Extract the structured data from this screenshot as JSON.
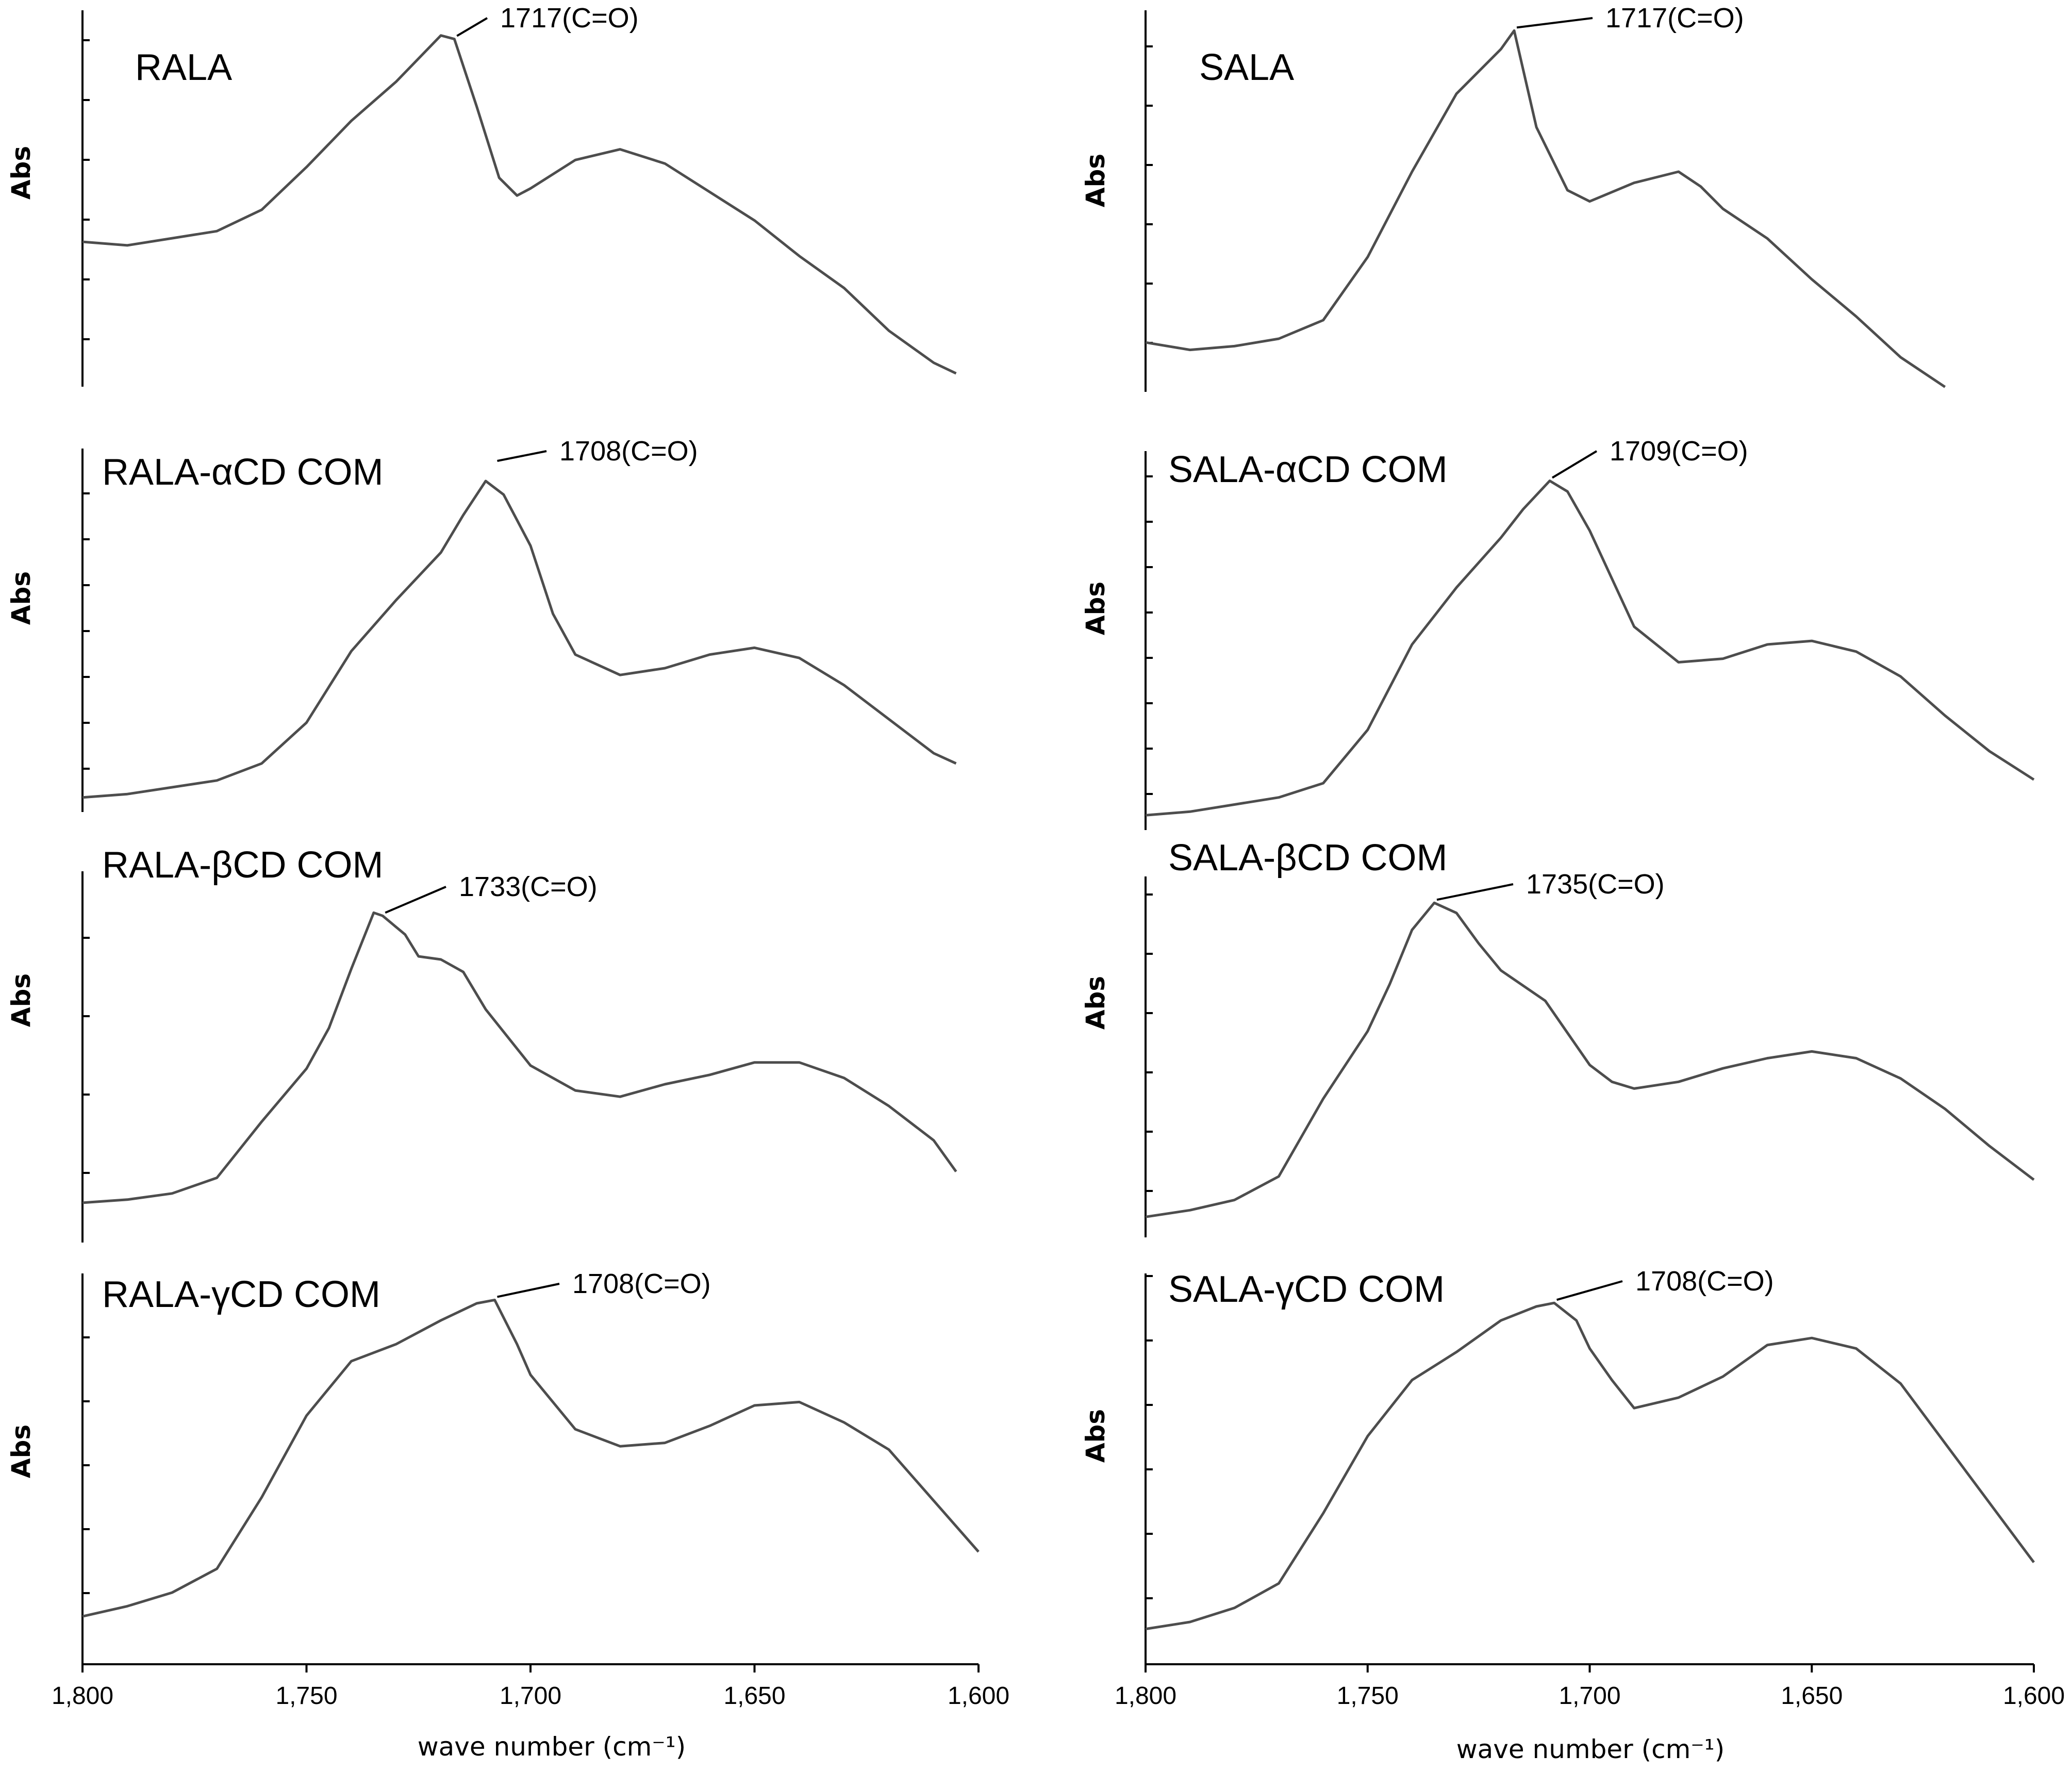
{
  "chart_data": [
    {
      "type": "line",
      "title": "RALA",
      "ylabel": "Abs",
      "annotation": "1717(C=O)",
      "peak_x": 1717,
      "xlim": [
        1800,
        1600
      ],
      "ylim": [
        0,
        1
      ],
      "y_ticks": 6,
      "x": [
        1800,
        1790,
        1780,
        1770,
        1760,
        1750,
        1740,
        1730,
        1720,
        1717,
        1712,
        1707,
        1703,
        1700,
        1690,
        1680,
        1670,
        1660,
        1650,
        1640,
        1630,
        1620,
        1610,
        1605
      ],
      "y": [
        0.4,
        0.39,
        0.41,
        0.43,
        0.49,
        0.61,
        0.74,
        0.85,
        0.98,
        0.97,
        0.78,
        0.58,
        0.53,
        0.55,
        0.63,
        0.66,
        0.62,
        0.54,
        0.46,
        0.36,
        0.27,
        0.15,
        0.06,
        0.03
      ]
    },
    {
      "type": "line",
      "title": "RALA-αCD COM",
      "ylabel": "Abs",
      "annotation": "1708(C=O)",
      "peak_x": 1708,
      "xlim": [
        1800,
        1600
      ],
      "ylim": [
        0,
        1
      ],
      "y_ticks": 8,
      "x": [
        1800,
        1790,
        1780,
        1770,
        1760,
        1750,
        1740,
        1730,
        1720,
        1715,
        1710,
        1706,
        1700,
        1695,
        1690,
        1680,
        1670,
        1660,
        1650,
        1640,
        1630,
        1620,
        1610,
        1605
      ],
      "y": [
        0.02,
        0.03,
        0.05,
        0.07,
        0.12,
        0.24,
        0.45,
        0.6,
        0.74,
        0.85,
        0.95,
        0.91,
        0.76,
        0.56,
        0.44,
        0.38,
        0.4,
        0.44,
        0.46,
        0.43,
        0.35,
        0.25,
        0.15,
        0.12
      ]
    },
    {
      "type": "line",
      "title": "RALA-βCD COM",
      "ylabel": "Abs",
      "annotation": "1733(C=O)",
      "peak_x": 1733,
      "xlim": [
        1800,
        1600
      ],
      "ylim": [
        0,
        1
      ],
      "y_ticks": 4,
      "x": [
        1800,
        1790,
        1780,
        1770,
        1760,
        1750,
        1745,
        1740,
        1735,
        1733,
        1728,
        1725,
        1720,
        1715,
        1710,
        1700,
        1690,
        1680,
        1670,
        1660,
        1650,
        1640,
        1630,
        1620,
        1610,
        1605
      ],
      "y": [
        0.02,
        0.03,
        0.05,
        0.1,
        0.28,
        0.45,
        0.58,
        0.77,
        0.95,
        0.94,
        0.88,
        0.81,
        0.8,
        0.76,
        0.64,
        0.46,
        0.38,
        0.36,
        0.4,
        0.43,
        0.47,
        0.47,
        0.42,
        0.33,
        0.22,
        0.12
      ]
    },
    {
      "type": "line",
      "title": "RALA-γCD COM",
      "ylabel": "Abs",
      "annotation": "1708(C=O)",
      "peak_x": 1708,
      "xlim": [
        1800,
        1600
      ],
      "ylim": [
        0,
        1
      ],
      "y_ticks": 5,
      "x": [
        1800,
        1790,
        1780,
        1770,
        1760,
        1750,
        1740,
        1730,
        1720,
        1712,
        1708,
        1703,
        1700,
        1690,
        1680,
        1670,
        1660,
        1650,
        1640,
        1630,
        1620,
        1610,
        1600
      ],
      "y": [
        0.03,
        0.06,
        0.1,
        0.17,
        0.38,
        0.62,
        0.78,
        0.83,
        0.9,
        0.95,
        0.96,
        0.83,
        0.74,
        0.58,
        0.53,
        0.54,
        0.59,
        0.65,
        0.66,
        0.6,
        0.52,
        0.37,
        0.22
      ]
    },
    {
      "type": "line",
      "title": "SALA",
      "ylabel": "Abs",
      "annotation": "1717(C=O)",
      "peak_x": 1717,
      "xlim": [
        1800,
        1600
      ],
      "ylim": [
        0,
        1
      ],
      "y_ticks": 6,
      "x": [
        1800,
        1790,
        1780,
        1770,
        1760,
        1750,
        1740,
        1730,
        1720,
        1717,
        1712,
        1705,
        1700,
        1690,
        1680,
        1675,
        1670,
        1660,
        1650,
        1640,
        1630,
        1620
      ],
      "y": [
        0.14,
        0.12,
        0.13,
        0.15,
        0.2,
        0.37,
        0.6,
        0.81,
        0.93,
        0.98,
        0.72,
        0.55,
        0.52,
        0.57,
        0.6,
        0.56,
        0.5,
        0.42,
        0.31,
        0.21,
        0.1,
        0.02
      ]
    },
    {
      "type": "line",
      "title": "SALA-αCD COM",
      "ylabel": "Abs",
      "annotation": "1709(C=O)",
      "peak_x": 1709,
      "xlim": [
        1800,
        1600
      ],
      "ylim": [
        0,
        1
      ],
      "y_ticks": 9,
      "x": [
        1800,
        1790,
        1780,
        1770,
        1760,
        1750,
        1740,
        1730,
        1720,
        1715,
        1709,
        1705,
        1700,
        1690,
        1680,
        1670,
        1660,
        1650,
        1640,
        1630,
        1620,
        1610,
        1600
      ],
      "y": [
        0.02,
        0.03,
        0.05,
        0.07,
        0.11,
        0.26,
        0.5,
        0.66,
        0.8,
        0.88,
        0.96,
        0.93,
        0.82,
        0.55,
        0.45,
        0.46,
        0.5,
        0.51,
        0.48,
        0.41,
        0.3,
        0.2,
        0.12
      ]
    },
    {
      "type": "line",
      "title": "SALA-βCD COM",
      "ylabel": "Abs",
      "annotation": "1735(C=O)",
      "peak_x": 1735,
      "xlim": [
        1800,
        1600
      ],
      "ylim": [
        0,
        1
      ],
      "y_ticks": 6,
      "x": [
        1800,
        1790,
        1780,
        1770,
        1760,
        1750,
        1745,
        1740,
        1735,
        1730,
        1725,
        1720,
        1710,
        1700,
        1695,
        1690,
        1680,
        1670,
        1660,
        1650,
        1640,
        1630,
        1620,
        1610,
        1600
      ],
      "y": [
        0.03,
        0.05,
        0.08,
        0.15,
        0.38,
        0.58,
        0.72,
        0.88,
        0.96,
        0.93,
        0.84,
        0.76,
        0.67,
        0.48,
        0.43,
        0.41,
        0.43,
        0.47,
        0.5,
        0.52,
        0.5,
        0.44,
        0.35,
        0.24,
        0.14
      ]
    },
    {
      "type": "line",
      "title": "SALA-γCD COM",
      "ylabel": "Abs",
      "annotation": "1708(C=O)",
      "peak_x": 1708,
      "xlim": [
        1800,
        1600
      ],
      "ylim": [
        0,
        1
      ],
      "y_ticks": 7,
      "x": [
        1800,
        1790,
        1780,
        1770,
        1760,
        1750,
        1740,
        1730,
        1720,
        1712,
        1708,
        1703,
        1700,
        1695,
        1690,
        1680,
        1670,
        1660,
        1650,
        1640,
        1630,
        1620,
        1610,
        1600
      ],
      "y": [
        0.03,
        0.05,
        0.09,
        0.16,
        0.36,
        0.58,
        0.74,
        0.82,
        0.91,
        0.95,
        0.96,
        0.91,
        0.83,
        0.74,
        0.66,
        0.69,
        0.75,
        0.84,
        0.86,
        0.83,
        0.73,
        0.56,
        0.39,
        0.22
      ]
    }
  ],
  "x_axis": {
    "tick_labels": [
      "1,800",
      "1,750",
      "1,700",
      "1,650",
      "1,600"
    ],
    "tick_values": [
      1800,
      1750,
      1700,
      1650,
      1600
    ],
    "label": "wave number (cm⁻¹)"
  }
}
